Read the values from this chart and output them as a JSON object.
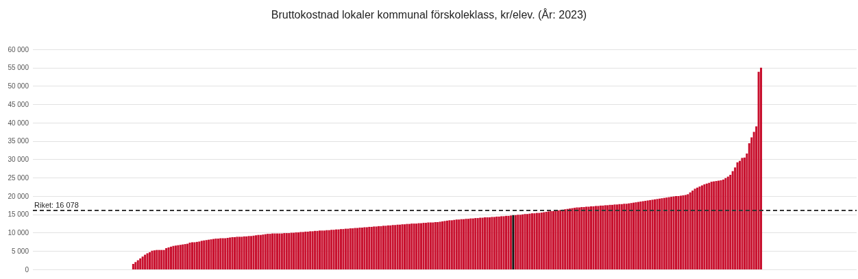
{
  "chart_data": {
    "type": "bar",
    "title": "Bruttokostnad lokaler kommunal förskoleklass, kr/elev. (År: 2023)",
    "categories": [
      null,
      null,
      null,
      null,
      null,
      null,
      null,
      null,
      null,
      null,
      null,
      null,
      null,
      null,
      null,
      null,
      null,
      null,
      null,
      null,
      null,
      null,
      null,
      null,
      null,
      null,
      null,
      null,
      null,
      null,
      null,
      null,
      null,
      null,
      null,
      null,
      null,
      null,
      null,
      null,
      null,
      null,
      null,
      null,
      null,
      null,
      null,
      null,
      null,
      null,
      null,
      null,
      null,
      null,
      null,
      null,
      null,
      null,
      null,
      null,
      null,
      null,
      null,
      null,
      null,
      null,
      null,
      null,
      null,
      null,
      null,
      null,
      null,
      null,
      null,
      null,
      null,
      null,
      null,
      null,
      null,
      null,
      null,
      null,
      null,
      null,
      null,
      null,
      null,
      null,
      null,
      null,
      null,
      null,
      null,
      null,
      null,
      null,
      null,
      null,
      null,
      null,
      null,
      null,
      null,
      null,
      null,
      null,
      null,
      null,
      null,
      null,
      null,
      null,
      null,
      null,
      null,
      null,
      null,
      null,
      null,
      null,
      null,
      null,
      null,
      null,
      null,
      null,
      null,
      null,
      null,
      null,
      null,
      null,
      null,
      null,
      null,
      null,
      null,
      null,
      null,
      null,
      null,
      null,
      null,
      null,
      null,
      null,
      null,
      null,
      null,
      null,
      null,
      null,
      null,
      null,
      null,
      null,
      null,
      null,
      null,
      null,
      null,
      null,
      null,
      null,
      null,
      null,
      null,
      null,
      null,
      null,
      null,
      null,
      null,
      null,
      null,
      null,
      null,
      null,
      null,
      null,
      null,
      null,
      null,
      null,
      null,
      null,
      null,
      null,
      null,
      null,
      null,
      null,
      null,
      null,
      null,
      null,
      null,
      null,
      null,
      null,
      null,
      null,
      null,
      null,
      null,
      null,
      null,
      null,
      null,
      null,
      null,
      null,
      null,
      null,
      null,
      null,
      null,
      null,
      null,
      null,
      null,
      null,
      null,
      null,
      null,
      null,
      null,
      null,
      null,
      null,
      null,
      null,
      null,
      null,
      null,
      null,
      null,
      null,
      null,
      null,
      null,
      null,
      null,
      null,
      null,
      null,
      null,
      null,
      null,
      null,
      null,
      null,
      null,
      null,
      null,
      null,
      null,
      null,
      null,
      null,
      null,
      null,
      null,
      null,
      null,
      null,
      null,
      null,
      null,
      null,
      null,
      null,
      null,
      null,
      null,
      null,
      null,
      null,
      null,
      null,
      null,
      null,
      null,
      null,
      null,
      null,
      null,
      null,
      null,
      null,
      null,
      null,
      null,
      null,
      null,
      null,
      null,
      null,
      null,
      null,
      null,
      null,
      null,
      null,
      null,
      null,
      null,
      null,
      null,
      null,
      null,
      null,
      null,
      null,
      null,
      null,
      null,
      null,
      null,
      null,
      null,
      null,
      null,
      null,
      null,
      null,
      null,
      null,
      null,
      null,
      null,
      null,
      null,
      null,
      null,
      null,
      null,
      null,
      null,
      null,
      null,
      null,
      null,
      null,
      null,
      null,
      null
    ],
    "values": [
      null,
      null,
      null,
      null,
      null,
      null,
      null,
      null,
      null,
      null,
      null,
      null,
      null,
      null,
      null,
      null,
      null,
      null,
      null,
      null,
      null,
      null,
      null,
      null,
      null,
      null,
      null,
      null,
      null,
      null,
      null,
      null,
      null,
      null,
      null,
      null,
      null,
      null,
      null,
      null,
      null,
      null,
      1500,
      2000,
      2500,
      3000,
      3500,
      4000,
      4400,
      4700,
      5100,
      5200,
      5300,
      5300,
      5300,
      5300,
      5800,
      6000,
      6200,
      6400,
      6500,
      6600,
      6700,
      6800,
      6900,
      7000,
      7300,
      7400,
      7400,
      7500,
      7600,
      7800,
      7900,
      8000,
      8100,
      8200,
      8300,
      8400,
      8400,
      8500,
      8500,
      8500,
      8600,
      8700,
      8800,
      8800,
      8900,
      8900,
      8900,
      9000,
      9000,
      9100,
      9100,
      9200,
      9300,
      9400,
      9400,
      9500,
      9600,
      9700,
      9700,
      9800,
      9800,
      9800,
      9800,
      9800,
      9900,
      9900,
      9900,
      10000,
      10000,
      10100,
      10100,
      10200,
      10200,
      10300,
      10300,
      10400,
      10400,
      10500,
      10500,
      10600,
      10600,
      10600,
      10700,
      10700,
      10800,
      10800,
      10900,
      10900,
      11000,
      11000,
      11100,
      11100,
      11200,
      11200,
      11300,
      11300,
      11400,
      11400,
      11500,
      11500,
      11600,
      11600,
      11700,
      11700,
      11800,
      11800,
      11900,
      11900,
      12000,
      12000,
      12100,
      12100,
      12200,
      12200,
      12300,
      12300,
      12400,
      12400,
      12500,
      12500,
      12500,
      12600,
      12600,
      12700,
      12700,
      12800,
      12800,
      12800,
      12900,
      12900,
      13000,
      13100,
      13200,
      13300,
      13400,
      13400,
      13500,
      13600,
      13600,
      13700,
      13700,
      13800,
      13800,
      13900,
      13900,
      14000,
      14000,
      14100,
      14100,
      14200,
      14200,
      14200,
      14300,
      14300,
      14400,
      14400,
      14500,
      14500,
      14600,
      14600,
      14700,
      14800,
      14800,
      14900,
      14900,
      15000,
      15100,
      15100,
      15200,
      15300,
      15300,
      15400,
      15400,
      15500,
      15600,
      15700,
      15800,
      15900,
      15900,
      16000,
      16100,
      16200,
      16300,
      16400,
      16500,
      16600,
      16700,
      16800,
      16900,
      16900,
      17000,
      17000,
      17100,
      17100,
      17200,
      17200,
      17300,
      17300,
      17400,
      17400,
      17500,
      17500,
      17600,
      17600,
      17700,
      17700,
      17800,
      17800,
      17900,
      17900,
      18000,
      18100,
      18200,
      18300,
      18400,
      18500,
      18600,
      18700,
      18800,
      18900,
      19000,
      19100,
      19200,
      19300,
      19400,
      19500,
      19600,
      19700,
      19800,
      19900,
      20000,
      20000,
      20100,
      20200,
      20300,
      20500,
      21000,
      21500,
      22000,
      22300,
      22600,
      22900,
      23200,
      23400,
      23600,
      23900,
      24000,
      24100,
      24200,
      24300,
      24500,
      24900,
      25300,
      25800,
      26800,
      27800,
      29200,
      29600,
      30400,
      30500,
      31600,
      34400,
      36000,
      37500,
      39000,
      53900,
      55000,
      null,
      null,
      null,
      null,
      null,
      null,
      null,
      null,
      null,
      null,
      null,
      null,
      null,
      null,
      null,
      null,
      null,
      null,
      null,
      null,
      null,
      null,
      null,
      null,
      null,
      null,
      null,
      null,
      null,
      null,
      null,
      null,
      null,
      null,
      null,
      null,
      null,
      null,
      null,
      null
    ],
    "colors": [
      "#c8102e",
      "#c8102e",
      "#c8102e",
      "#c8102e",
      "#c8102e",
      "#c8102e",
      "#c8102e",
      "#c8102e",
      "#c8102e",
      "#c8102e",
      "#c8102e",
      "#c8102e",
      "#c8102e",
      "#c8102e",
      "#c8102e",
      "#c8102e",
      "#c8102e",
      "#c8102e",
      "#c8102e",
      "#c8102e",
      "#c8102e",
      "#c8102e",
      "#c8102e",
      "#c8102e",
      "#c8102e",
      "#c8102e",
      "#c8102e",
      "#c8102e",
      "#c8102e",
      "#c8102e",
      "#c8102e",
      "#c8102e",
      "#c8102e",
      "#c8102e",
      "#c8102e",
      "#c8102e",
      "#c8102e",
      "#c8102e",
      "#c8102e",
      "#c8102e",
      "#c8102e",
      "#c8102e",
      "#c8102e",
      "#c8102e",
      "#c8102e",
      "#c8102e",
      "#c8102e",
      "#c8102e",
      "#c8102e",
      "#c8102e",
      "#c8102e",
      "#c8102e",
      "#c8102e",
      "#c8102e",
      "#c8102e",
      "#c8102e",
      "#c8102e",
      "#c8102e",
      "#c8102e",
      "#c8102e",
      "#c8102e",
      "#c8102e",
      "#c8102e",
      "#c8102e",
      "#c8102e",
      "#c8102e",
      "#c8102e",
      "#c8102e",
      "#c8102e",
      "#c8102e",
      "#c8102e",
      "#c8102e",
      "#c8102e",
      "#c8102e",
      "#c8102e",
      "#c8102e",
      "#c8102e",
      "#c8102e",
      "#c8102e",
      "#c8102e",
      "#c8102e",
      "#c8102e",
      "#c8102e",
      "#c8102e",
      "#c8102e",
      "#c8102e",
      "#c8102e",
      "#c8102e",
      "#c8102e",
      "#c8102e",
      "#c8102e",
      "#c8102e",
      "#c8102e",
      "#c8102e",
      "#c8102e",
      "#c8102e",
      "#c8102e",
      "#c8102e",
      "#c8102e",
      "#c8102e",
      "#c8102e",
      "#c8102e",
      "#c8102e",
      "#c8102e",
      "#c8102e",
      "#c8102e",
      "#c8102e",
      "#c8102e",
      "#c8102e",
      "#c8102e",
      "#c8102e",
      "#c8102e",
      "#c8102e",
      "#c8102e",
      "#c8102e",
      "#c8102e",
      "#c8102e",
      "#c8102e",
      "#c8102e",
      "#c8102e",
      "#c8102e",
      "#c8102e",
      "#c8102e",
      "#c8102e",
      "#c8102e",
      "#c8102e",
      "#c8102e",
      "#c8102e",
      "#c8102e",
      "#c8102e",
      "#c8102e",
      "#c8102e",
      "#c8102e",
      "#c8102e",
      "#c8102e",
      "#c8102e",
      "#c8102e",
      "#c8102e",
      "#c8102e",
      "#c8102e",
      "#c8102e",
      "#c8102e",
      "#c8102e",
      "#c8102e",
      "#c8102e",
      "#c8102e",
      "#c8102e",
      "#c8102e",
      "#c8102e",
      "#c8102e",
      "#c8102e",
      "#c8102e",
      "#c8102e",
      "#c8102e",
      "#c8102e",
      "#c8102e",
      "#c8102e",
      "#c8102e",
      "#c8102e",
      "#c8102e",
      "#c8102e",
      "#c8102e",
      "#c8102e",
      "#c8102e",
      "#c8102e",
      "#c8102e",
      "#c8102e",
      "#c8102e",
      "#c8102e",
      "#c8102e",
      "#c8102e",
      "#c8102e",
      "#c8102e",
      "#c8102e",
      "#c8102e",
      "#c8102e",
      "#c8102e",
      "#c8102e",
      "#c8102e",
      "#c8102e",
      "#c8102e",
      "#c8102e",
      "#c8102e",
      "#c8102e",
      "#c8102e",
      "#c8102e",
      "#c8102e",
      "#c8102e",
      "#c8102e",
      "#c8102e",
      "#c8102e",
      "#c8102e",
      "#c8102e",
      "#c8102e",
      "#c8102e",
      "#c8102e",
      "#c8102e",
      "#c8102e",
      "#c8102e",
      "#c8102e",
      "#c8102e",
      "#c8102e",
      "#c8102e",
      "#111111",
      "#c8102e",
      "#c8102e",
      "#c8102e",
      "#c8102e",
      "#c8102e",
      "#c8102e",
      "#c8102e",
      "#c8102e",
      "#c8102e",
      "#c8102e",
      "#c8102e",
      "#c8102e",
      "#c8102e",
      "#c8102e",
      "#c8102e",
      "#c8102e",
      "#c8102e",
      "#c8102e",
      "#c8102e",
      "#c8102e",
      "#c8102e",
      "#c8102e",
      "#c8102e",
      "#c8102e",
      "#c8102e",
      "#c8102e",
      "#c8102e",
      "#c8102e",
      "#c8102e",
      "#c8102e",
      "#c8102e",
      "#c8102e",
      "#c8102e",
      "#c8102e",
      "#c8102e",
      "#c8102e",
      "#c8102e",
      "#c8102e",
      "#c8102e",
      "#c8102e",
      "#c8102e",
      "#c8102e",
      "#c8102e",
      "#c8102e",
      "#c8102e",
      "#c8102e",
      "#c8102e",
      "#c8102e",
      "#c8102e",
      "#c8102e",
      "#c8102e",
      "#c8102e",
      "#c8102e",
      "#c8102e",
      "#c8102e",
      "#c8102e",
      "#c8102e",
      "#c8102e",
      "#c8102e",
      "#c8102e",
      "#c8102e",
      "#c8102e",
      "#c8102e",
      "#c8102e",
      "#c8102e",
      "#c8102e",
      "#c8102e",
      "#c8102e",
      "#c8102e",
      "#c8102e",
      "#c8102e",
      "#c8102e",
      "#c8102e",
      "#c8102e",
      "#c8102e",
      "#c8102e",
      "#c8102e",
      "#c8102e",
      "#c8102e",
      "#c8102e",
      "#c8102e",
      "#c8102e",
      "#c8102e",
      "#c8102e",
      "#c8102e",
      "#c8102e",
      "#c8102e",
      "#c8102e",
      "#c8102e",
      "#c8102e",
      "#c8102e",
      "#c8102e",
      "#c8102e",
      "#c8102e",
      "#c8102e",
      "#c8102e",
      "#c8102e",
      "#c8102e",
      "#c8102e",
      "#c8102e",
      "#c8102e",
      "#c8102e",
      "#c8102e",
      "#c8102e",
      "#c8102e",
      "#c8102e",
      "#c8102e",
      "#c8102e",
      "#c8102e",
      "#c8102e",
      "#c8102e",
      "#c8102e",
      "#c8102e",
      "#c8102e",
      "#c8102e",
      "#c8102e",
      "#c8102e",
      "#c8102e",
      "#c8102e",
      "#c8102e",
      "#c8102e",
      "#c8102e",
      "#c8102e",
      "#c8102e",
      "#c8102e",
      "#c8102e",
      "#c8102e",
      "#c8102e",
      "#c8102e",
      "#c8102e",
      "#c8102e",
      "#c8102e",
      "#c8102e",
      "#c8102e",
      "#c8102e",
      "#c8102e",
      "#c8102e",
      "#c8102e",
      "#c8102e",
      "#c8102e",
      "#c8102e",
      "#c8102e",
      "#c8102e",
      "#c8102e",
      "#c8102e"
    ],
    "ylim": [
      0,
      60000
    ],
    "yticks": [
      {
        "value": 0,
        "label": "0"
      },
      {
        "value": 5000,
        "label": "5 000"
      },
      {
        "value": 10000,
        "label": "10 000"
      },
      {
        "value": 15000,
        "label": "15 000"
      },
      {
        "value": 20000,
        "label": "20 000"
      },
      {
        "value": 25000,
        "label": "25 000"
      },
      {
        "value": 30000,
        "label": "30 000"
      },
      {
        "value": 35000,
        "label": "35 000"
      },
      {
        "value": 40000,
        "label": "40 000"
      },
      {
        "value": 45000,
        "label": "45 000"
      },
      {
        "value": 50000,
        "label": "50 000"
      },
      {
        "value": 55000,
        "label": "55 000"
      },
      {
        "value": 60000,
        "label": "60 000"
      }
    ],
    "grid": "y",
    "tick_labels": "y",
    "ref_lines": [
      {
        "axis": "y",
        "value": 16078,
        "label": "Riket: 16 078",
        "color": "#333333",
        "line_style": "dashed"
      }
    ]
  }
}
